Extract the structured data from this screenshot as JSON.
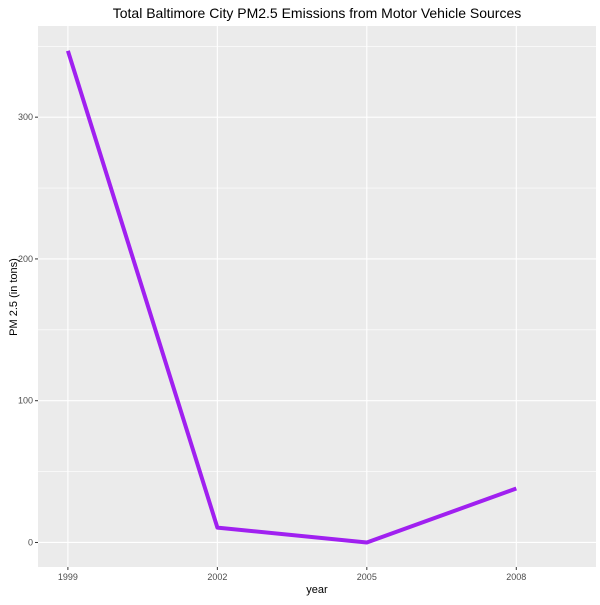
{
  "chart_data": {
    "type": "line",
    "title": "Total Baltimore City PM2.5 Emissions from Motor Vehicle Sources",
    "xlabel": "year",
    "ylabel": "PM 2.5 (in tons)",
    "x": [
      1999,
      2002,
      2005,
      2008
    ],
    "x_tick_labels": [
      "1999",
      "2002",
      "2005",
      "2008"
    ],
    "xlim": [
      1998.4,
      2009.6
    ],
    "y_ticks": [
      0,
      100,
      200,
      300
    ],
    "y_tick_labels": [
      "0",
      "100",
      "200",
      "300"
    ],
    "ylim": [
      -17.3,
      364.3
    ],
    "series": [
      {
        "values": [
          346.8,
          10.5,
          0.0,
          38.1
        ]
      }
    ],
    "grid": true,
    "legend": "none",
    "colors": {
      "panel_background": "#ebebeb",
      "grid_major": "#ffffff",
      "grid_minor": "#f5f5f5",
      "line": "#a020f0",
      "tick_text": "#4d4d4d"
    }
  }
}
